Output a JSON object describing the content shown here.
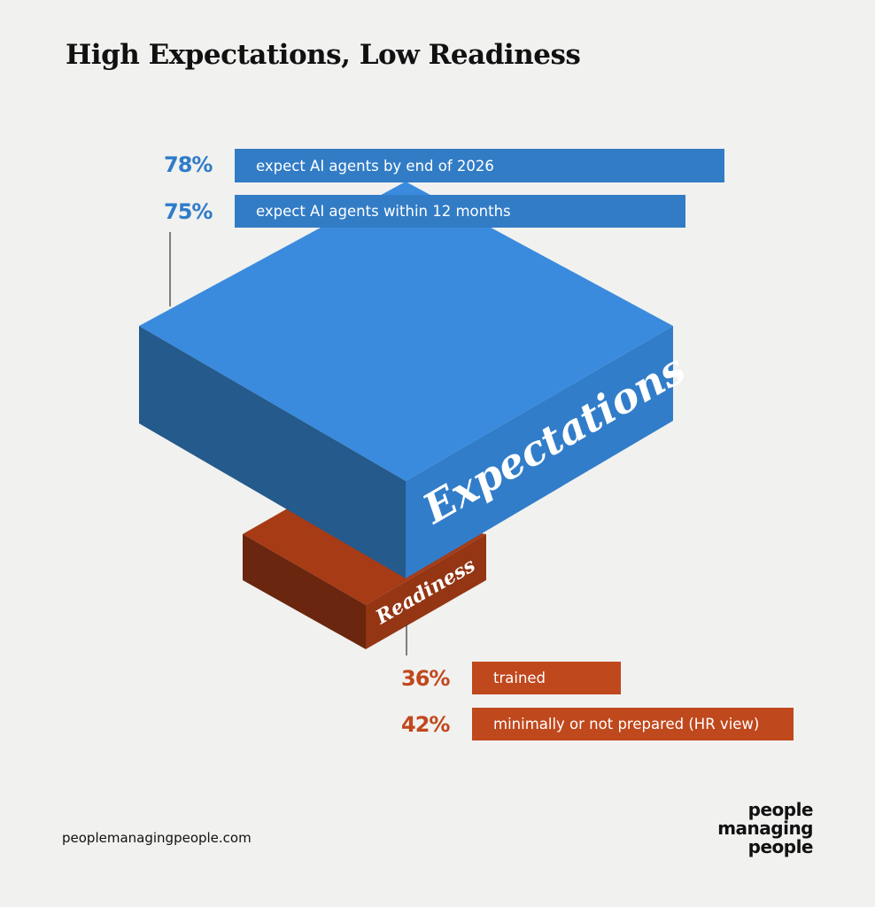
{
  "title": "High Expectations, Low Readiness",
  "chart_data": {
    "type": "bar",
    "title": "High Expectations, Low Readiness",
    "groups": [
      {
        "name": "Expectations",
        "color": "#3a8bdd",
        "items": [
          {
            "value": "78%",
            "label": "expect AI agents by end of 2026"
          },
          {
            "value": "75%",
            "label": "expect AI agents within 12 months"
          }
        ]
      },
      {
        "name": "Readiness",
        "color": "#c0481d",
        "items": [
          {
            "value": "36%",
            "label": "trained"
          },
          {
            "value": "42%",
            "label": "minimally or not prepared (HR view)"
          }
        ]
      }
    ]
  },
  "footer": {
    "url": "peoplemanagingpeople.com"
  },
  "logo": {
    "line1": "people",
    "line2": "managing",
    "line3": "people"
  }
}
